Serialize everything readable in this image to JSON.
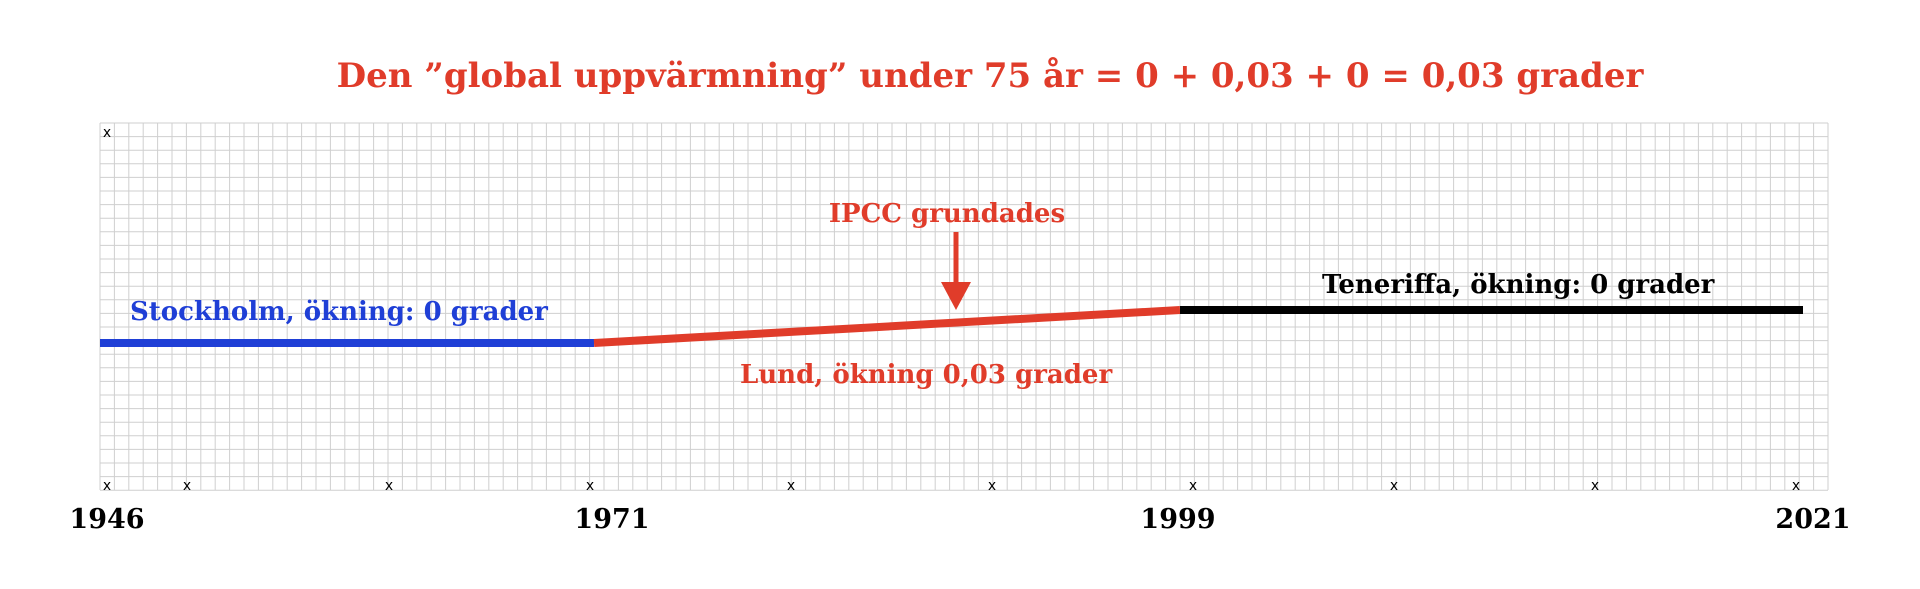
{
  "colors": {
    "red": "#e03c2a",
    "blue": "#1f3fd6",
    "black": "#000000",
    "grid": "#cfcfcf"
  },
  "chart_data": {
    "type": "line",
    "title": "Den ”global uppvärmning” under 75 år = 0 + 0,03 + 0 = 0,03 grader",
    "xlabel": "",
    "ylabel": "",
    "x_ticks": [
      "1946",
      "1971",
      "1999",
      "2021"
    ],
    "xlim": [
      1946,
      2021
    ],
    "grid": true,
    "tick_marker": "x",
    "series": [
      {
        "name": "Stockholm, ökning: 0 grader",
        "color": "#1f3fd6",
        "x": [
          1946,
          1971
        ],
        "y": [
          0,
          0
        ]
      },
      {
        "name": "Lund, ökning 0,03 grader",
        "color": "#e03c2a",
        "x": [
          1971,
          1999
        ],
        "y": [
          0,
          0.03
        ]
      },
      {
        "name": "Teneriffa, ökning: 0 grader",
        "color": "#000000",
        "x": [
          1999,
          2021
        ],
        "y": [
          0.03,
          0.03
        ]
      }
    ],
    "annotation": {
      "text": "IPCC grundades",
      "color": "#e03c2a",
      "arrow": "down"
    }
  }
}
